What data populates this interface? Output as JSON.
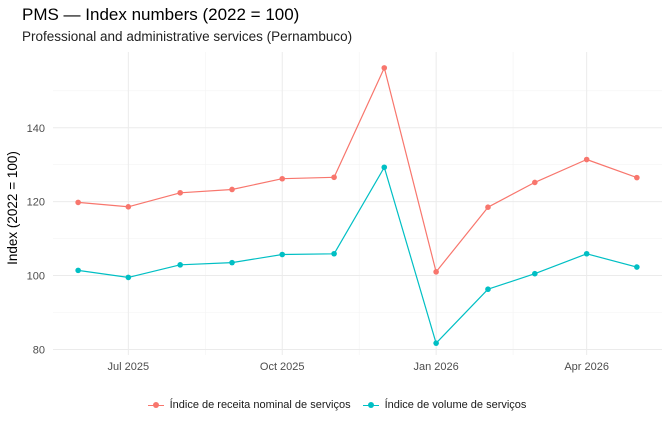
{
  "chart_data": {
    "type": "line",
    "title": "PMS — Index numbers (2022 = 100)",
    "subtitle": "Professional and administrative services (Pernambuco)",
    "xlabel": "",
    "ylabel": "Index (2022 = 100)",
    "x": [
      "2025-06-01",
      "2025-07-01",
      "2025-08-01",
      "2025-09-01",
      "2025-10-01",
      "2025-11-01",
      "2025-12-01",
      "2026-01-01",
      "2026-02-01",
      "2026-03-01",
      "2026-04-01",
      "2026-05-01"
    ],
    "x_ticks": [
      {
        "date": "2025-07-01",
        "label": "Jul 2025"
      },
      {
        "date": "2025-10-01",
        "label": "Oct 2025"
      },
      {
        "date": "2026-01-01",
        "label": "Jan 2026"
      },
      {
        "date": "2026-04-01",
        "label": "Apr 2026"
      }
    ],
    "y_ticks": [
      80,
      100,
      120,
      140
    ],
    "ylim": [
      78.5,
      160.5
    ],
    "grid": true,
    "legend_position": "bottom",
    "series": [
      {
        "name": "Índice de receita nominal de serviços",
        "color": "#F8766D",
        "values": [
          119.8,
          118.6,
          122.4,
          123.3,
          126.2,
          126.6,
          156.2,
          101.0,
          118.5,
          125.2,
          131.4,
          126.5
        ]
      },
      {
        "name": "Índice de volume de serviços",
        "color": "#00BFC4",
        "values": [
          101.4,
          99.5,
          102.9,
          103.5,
          105.7,
          105.9,
          129.3,
          81.7,
          96.3,
          100.5,
          105.9,
          102.3
        ]
      }
    ]
  }
}
